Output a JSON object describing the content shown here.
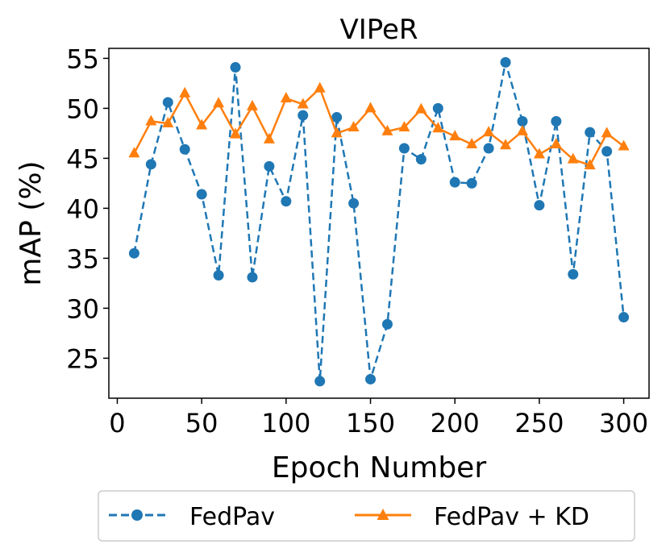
{
  "chart_data": {
    "type": "line",
    "title": "VIPeR",
    "xlabel": "Epoch Number",
    "ylabel": "mAP (%)",
    "xlim": [
      -5,
      315
    ],
    "ylim": [
      21,
      56
    ],
    "xticks": [
      0,
      50,
      100,
      150,
      200,
      250,
      300
    ],
    "yticks": [
      25,
      30,
      35,
      40,
      45,
      50,
      55
    ],
    "legend_position": "bottom-outside",
    "x": [
      10,
      20,
      30,
      40,
      50,
      60,
      70,
      80,
      90,
      100,
      110,
      120,
      130,
      140,
      150,
      160,
      170,
      180,
      190,
      200,
      210,
      220,
      230,
      240,
      250,
      260,
      270,
      280,
      290,
      300
    ],
    "series": [
      {
        "name": "FedPav",
        "color": "#1f77b4",
        "marker": "circle",
        "linestyle": "dashed",
        "values": [
          35.5,
          44.4,
          50.6,
          45.9,
          41.4,
          33.3,
          54.1,
          33.1,
          44.2,
          40.7,
          49.3,
          22.7,
          49.1,
          40.5,
          22.9,
          28.4,
          46.0,
          44.9,
          50.0,
          42.6,
          42.5,
          46.0,
          54.6,
          48.7,
          40.3,
          48.7,
          33.4,
          47.6,
          45.7,
          29.1
        ]
      },
      {
        "name": "FedPav + KD",
        "color": "#ff7f0e",
        "marker": "triangle",
        "linestyle": "solid",
        "values": [
          45.5,
          48.7,
          48.5,
          51.5,
          48.3,
          50.5,
          47.4,
          50.2,
          46.9,
          51.0,
          50.4,
          52.0,
          47.5,
          48.1,
          50.0,
          47.7,
          48.1,
          49.9,
          48.0,
          47.2,
          46.4,
          47.6,
          46.3,
          47.7,
          45.4,
          46.4,
          44.9,
          44.3,
          47.5,
          46.2
        ]
      }
    ]
  }
}
